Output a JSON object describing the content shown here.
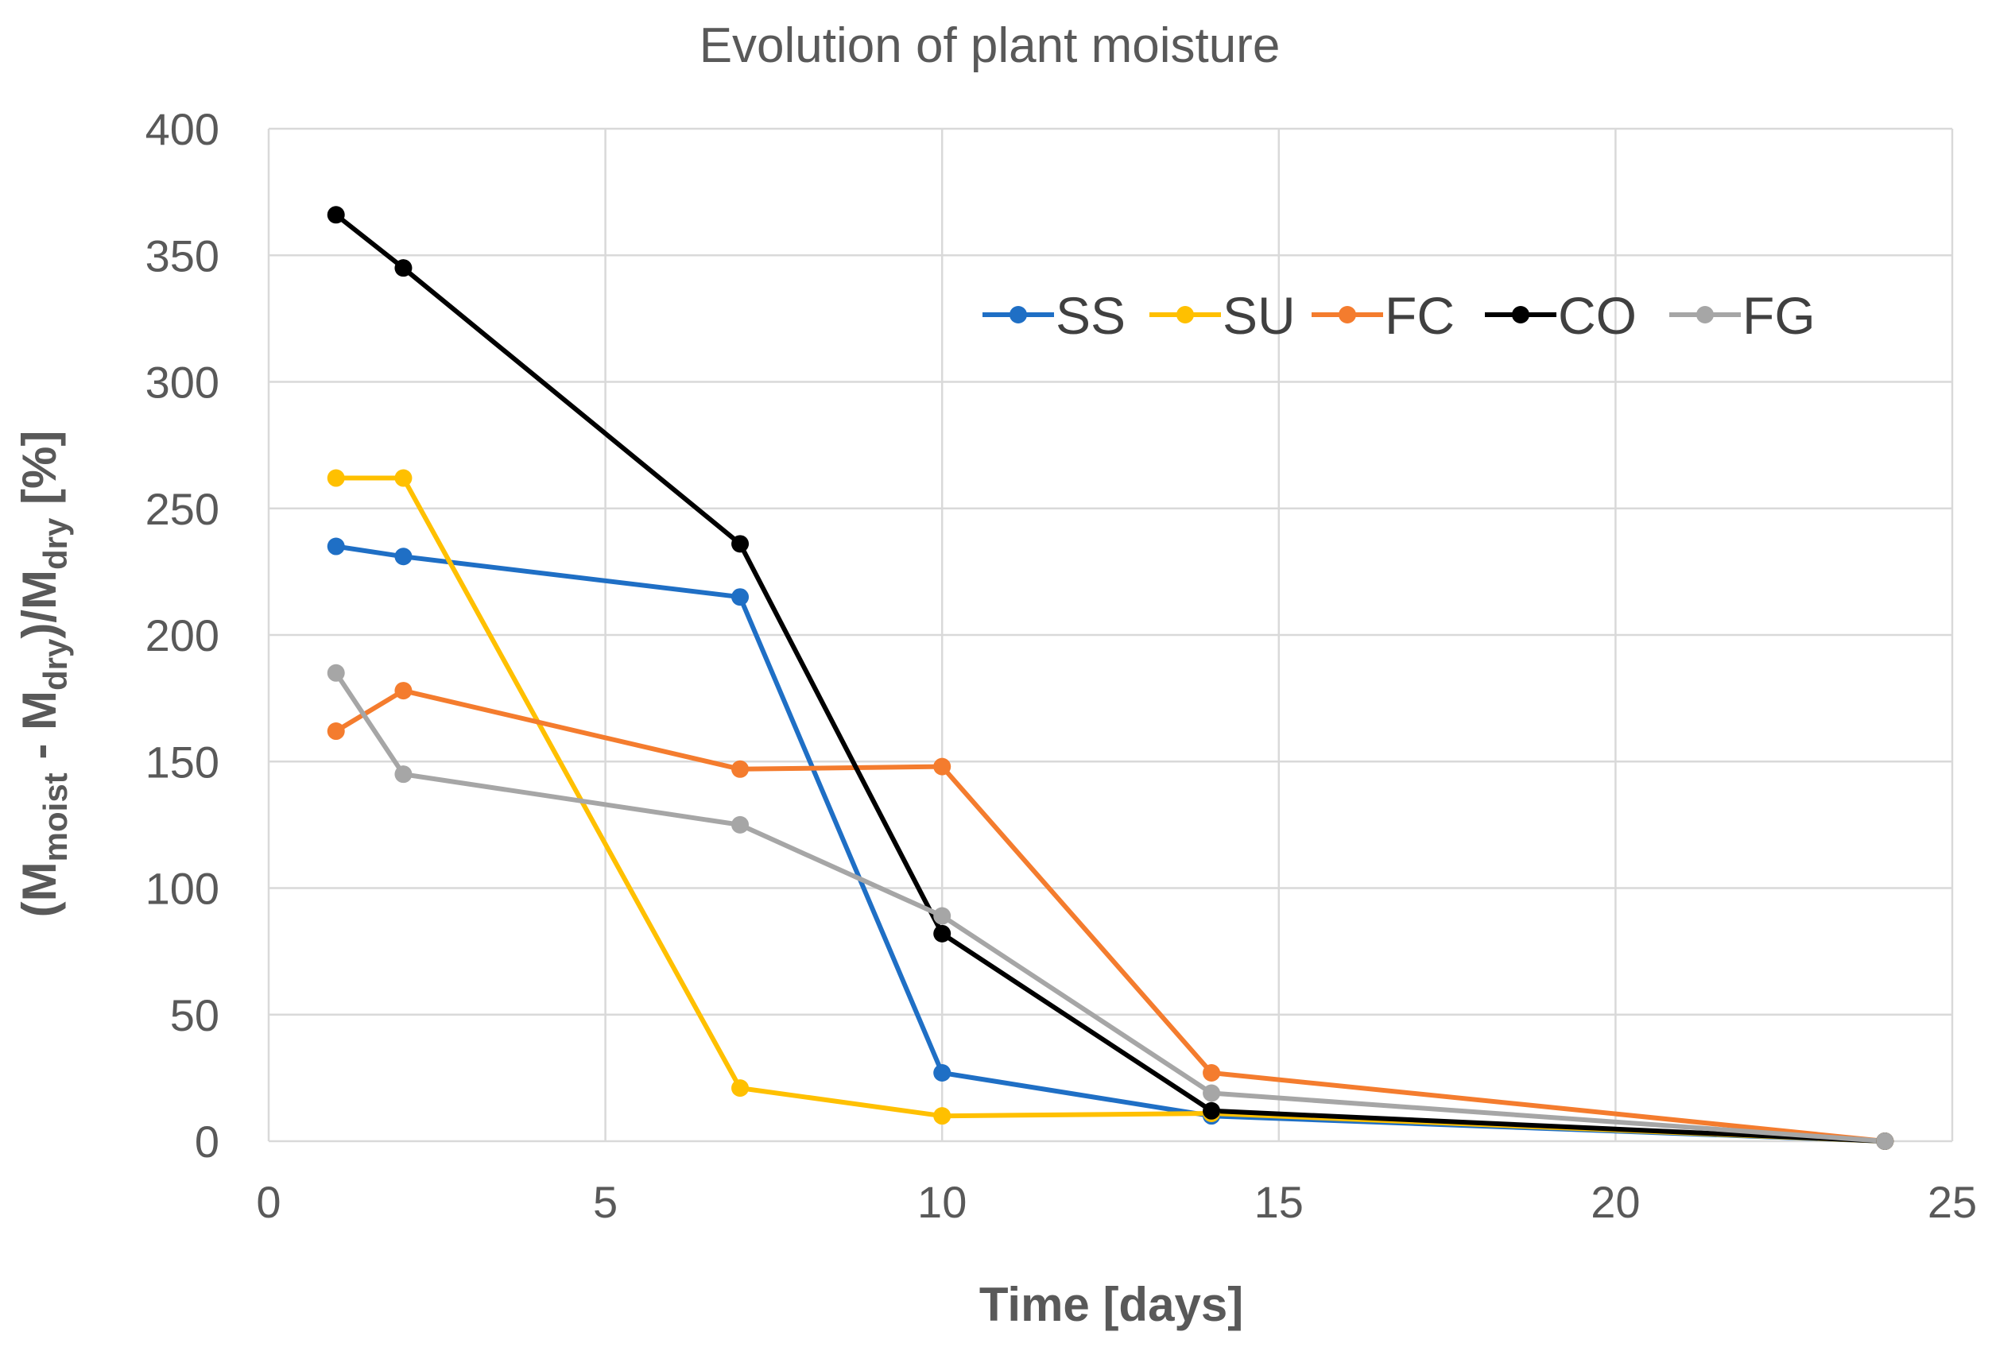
{
  "chart_data": {
    "type": "line",
    "title": "Evolution of plant moisture",
    "xlabel": "Time [days]",
    "ylabel": {
      "parts": [
        {
          "text": "(M",
          "sub": false
        },
        {
          "text": "moist",
          "sub": true
        },
        {
          "text": " - M",
          "sub": false
        },
        {
          "text": "dry",
          "sub": true
        },
        {
          "text": ")/M",
          "sub": false
        },
        {
          "text": "dry",
          "sub": true
        },
        {
          "text": " [%]",
          "sub": false
        }
      ]
    },
    "xlim": [
      0,
      25
    ],
    "ylim": [
      0,
      400
    ],
    "xticks": [
      0,
      5,
      10,
      15,
      20,
      25
    ],
    "yticks": [
      0,
      50,
      100,
      150,
      200,
      250,
      300,
      350,
      400
    ],
    "grid": true,
    "legend_position": "top-right",
    "series": [
      {
        "name": "SS",
        "color": "#1f6fc5",
        "x": [
          1,
          2,
          7,
          10,
          14,
          24
        ],
        "y": [
          235,
          231,
          215,
          27,
          10,
          0
        ]
      },
      {
        "name": "SU",
        "color": "#ffc000",
        "x": [
          1,
          2,
          7,
          10,
          14,
          24
        ],
        "y": [
          262,
          262,
          21,
          10,
          11,
          0
        ]
      },
      {
        "name": "FC",
        "color": "#f47c2e",
        "x": [
          1,
          2,
          7,
          10,
          14,
          24
        ],
        "y": [
          162,
          178,
          147,
          148,
          27,
          0
        ]
      },
      {
        "name": "CO",
        "color": "#000000",
        "x": [
          1,
          2,
          7,
          10,
          14,
          24
        ],
        "y": [
          366,
          345,
          236,
          82,
          12,
          0
        ]
      },
      {
        "name": "FG",
        "color": "#a6a6a6",
        "x": [
          1,
          2,
          7,
          10,
          14,
          24
        ],
        "y": [
          185,
          145,
          125,
          89,
          19,
          0
        ]
      }
    ]
  }
}
